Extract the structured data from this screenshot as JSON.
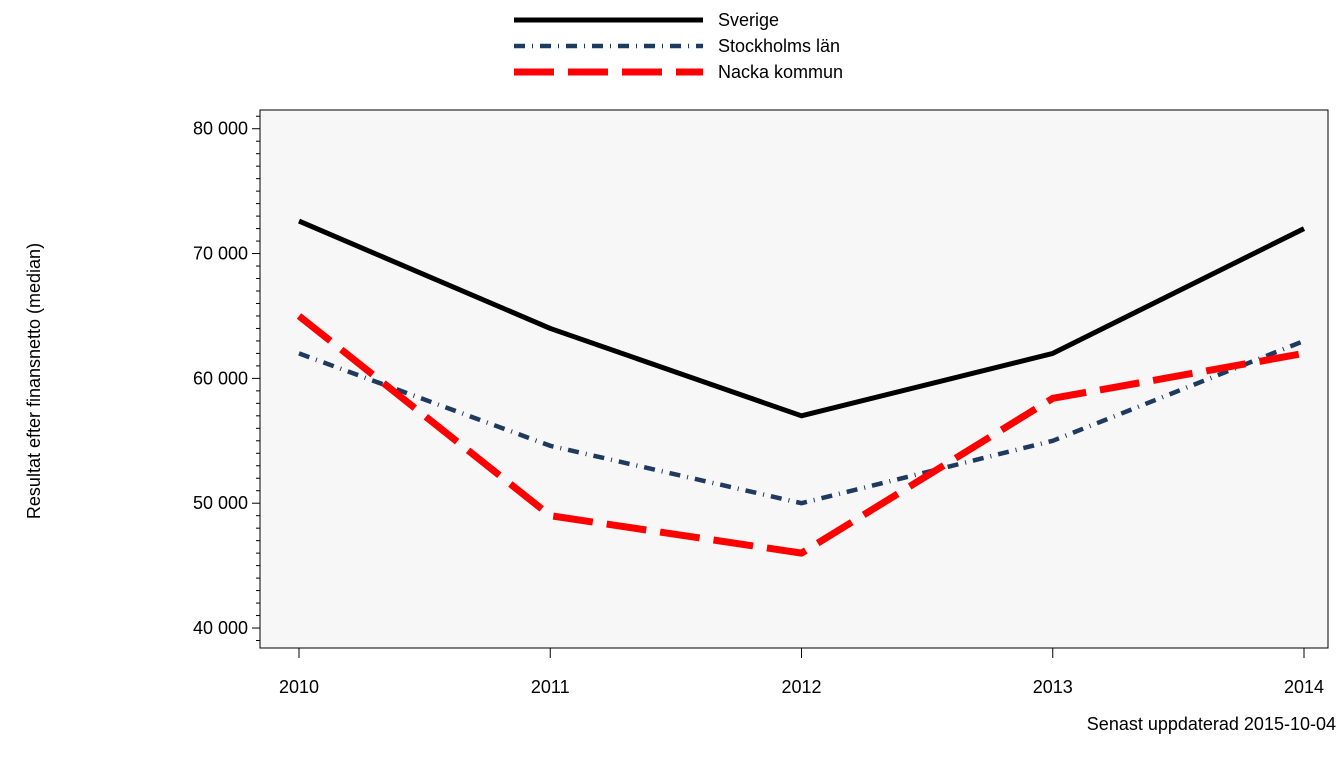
{
  "chart_data": {
    "type": "line",
    "x": [
      "2010",
      "2011",
      "2012",
      "2013",
      "2014"
    ],
    "series": [
      {
        "name": "Sverige",
        "values": [
          72600,
          64000,
          57000,
          62000,
          72000
        ],
        "color": "#000000",
        "style": "solid"
      },
      {
        "name": "Stockholms län",
        "values": [
          62000,
          54600,
          50000,
          55000,
          63000
        ],
        "color": "#1f3a5f",
        "style": "dash-dot"
      },
      {
        "name": "Nacka kommun",
        "values": [
          65000,
          49000,
          46000,
          58400,
          62000
        ],
        "color": "#ff0000",
        "style": "long-dash"
      }
    ],
    "yticks": [
      "40 000",
      "50 000",
      "60 000",
      "70 000",
      "80 000"
    ],
    "ytick_values": [
      40000,
      50000,
      60000,
      70000,
      80000
    ],
    "ylim": [
      38400,
      81500
    ],
    "ylabel": "Resultat efter finansnetto (median)",
    "xlabel": "",
    "title": "",
    "grid": false,
    "legend_position": "top-center",
    "plot_background": "#f7f7f7"
  },
  "footer": {
    "updated": "Senast uppdaterad 2015-10-04"
  }
}
